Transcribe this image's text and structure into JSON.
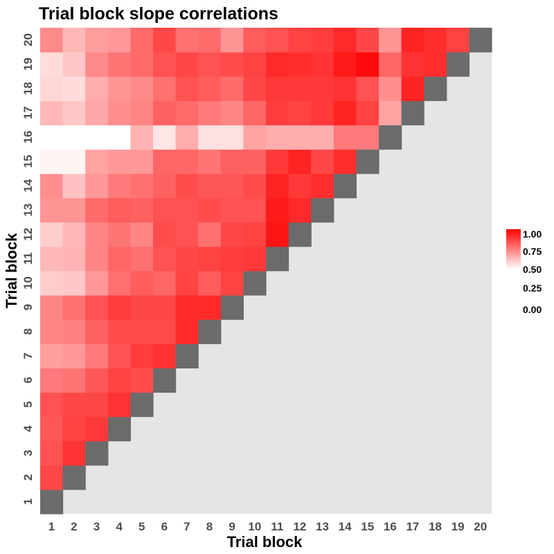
{
  "chart_data": {
    "type": "heatmap",
    "title": "Trial block slope correlations",
    "xlabel": "Trial block",
    "ylabel": "Trial block",
    "x_categories": [
      "1",
      "2",
      "3",
      "4",
      "5",
      "6",
      "7",
      "8",
      "9",
      "10",
      "11",
      "12",
      "13",
      "14",
      "15",
      "16",
      "17",
      "18",
      "19",
      "20"
    ],
    "y_categories": [
      "1",
      "2",
      "3",
      "4",
      "5",
      "6",
      "7",
      "8",
      "9",
      "10",
      "11",
      "12",
      "13",
      "14",
      "15",
      "16",
      "17",
      "18",
      "19",
      "20"
    ],
    "layout": "lower-triangle; row = y block, value columns x = 1..(y-1); diagonal cells shown dark gray; cells above the diagonal empty",
    "colors": {
      "low": "#ffffff",
      "high": "#ff0000",
      "diagonal": "#6b6b6b",
      "panel_background": "#e5e5e5"
    },
    "color_scale": {
      "limits": [
        0.5,
        1.0
      ],
      "breaks": [
        "1.00",
        "0.75",
        "0.50",
        "0.25",
        "0.00"
      ],
      "legend_position": "right"
    },
    "grid": false,
    "rows": [
      {
        "y": "1",
        "values": []
      },
      {
        "y": "2",
        "values": [
          0.86
        ]
      },
      {
        "y": "3",
        "values": [
          0.84,
          0.9
        ]
      },
      {
        "y": "4",
        "values": [
          0.83,
          0.87,
          0.89
        ]
      },
      {
        "y": "5",
        "values": [
          0.84,
          0.86,
          0.86,
          0.9
        ]
      },
      {
        "y": "6",
        "values": [
          0.76,
          0.77,
          0.83,
          0.87,
          0.85
        ]
      },
      {
        "y": "7",
        "values": [
          0.69,
          0.7,
          0.76,
          0.84,
          0.88,
          0.9
        ]
      },
      {
        "y": "8",
        "values": [
          0.74,
          0.75,
          0.81,
          0.85,
          0.85,
          0.85,
          0.92
        ]
      },
      {
        "y": "9",
        "values": [
          0.74,
          0.78,
          0.84,
          0.88,
          0.86,
          0.86,
          0.92,
          0.92
        ]
      },
      {
        "y": "10",
        "values": [
          0.6,
          0.61,
          0.7,
          0.78,
          0.82,
          0.8,
          0.87,
          0.82,
          0.87
        ]
      },
      {
        "y": "11",
        "values": [
          0.64,
          0.65,
          0.74,
          0.8,
          0.78,
          0.84,
          0.86,
          0.87,
          0.88,
          0.89
        ]
      },
      {
        "y": "12",
        "values": [
          0.6,
          0.64,
          0.74,
          0.77,
          0.74,
          0.85,
          0.84,
          0.78,
          0.86,
          0.87,
          0.96
        ]
      },
      {
        "y": "13",
        "values": [
          0.71,
          0.71,
          0.79,
          0.82,
          0.81,
          0.84,
          0.84,
          0.85,
          0.84,
          0.84,
          0.95,
          0.92
        ]
      },
      {
        "y": "14",
        "values": [
          0.72,
          0.62,
          0.7,
          0.76,
          0.78,
          0.81,
          0.85,
          0.83,
          0.83,
          0.85,
          0.93,
          0.89,
          0.91
        ]
      },
      {
        "y": "15",
        "values": [
          0.52,
          0.52,
          0.68,
          0.7,
          0.7,
          0.8,
          0.8,
          0.77,
          0.81,
          0.81,
          0.89,
          0.93,
          0.86,
          0.91
        ]
      },
      {
        "y": "16",
        "values": [
          0.5,
          0.5,
          0.5,
          0.5,
          0.65,
          0.55,
          0.66,
          0.56,
          0.56,
          0.68,
          0.66,
          0.66,
          0.66,
          0.76,
          0.76
        ]
      },
      {
        "y": "17",
        "values": [
          0.64,
          0.61,
          0.67,
          0.72,
          0.74,
          0.81,
          0.79,
          0.76,
          0.74,
          0.8,
          0.88,
          0.87,
          0.89,
          0.93,
          0.87,
          0.68
        ]
      },
      {
        "y": "18",
        "values": [
          0.58,
          0.57,
          0.66,
          0.71,
          0.73,
          0.78,
          0.84,
          0.82,
          0.79,
          0.86,
          0.89,
          0.89,
          0.89,
          0.9,
          0.84,
          0.72,
          0.93
        ]
      },
      {
        "y": "19",
        "values": [
          0.57,
          0.61,
          0.73,
          0.77,
          0.79,
          0.84,
          0.86,
          0.84,
          0.85,
          0.87,
          0.92,
          0.91,
          0.9,
          0.95,
          0.98,
          0.8,
          0.9,
          0.91
        ]
      },
      {
        "y": "20",
        "values": [
          0.73,
          0.64,
          0.69,
          0.7,
          0.79,
          0.86,
          0.78,
          0.79,
          0.71,
          0.82,
          0.84,
          0.87,
          0.88,
          0.92,
          0.86,
          0.71,
          0.93,
          0.91,
          0.87
        ]
      }
    ]
  }
}
